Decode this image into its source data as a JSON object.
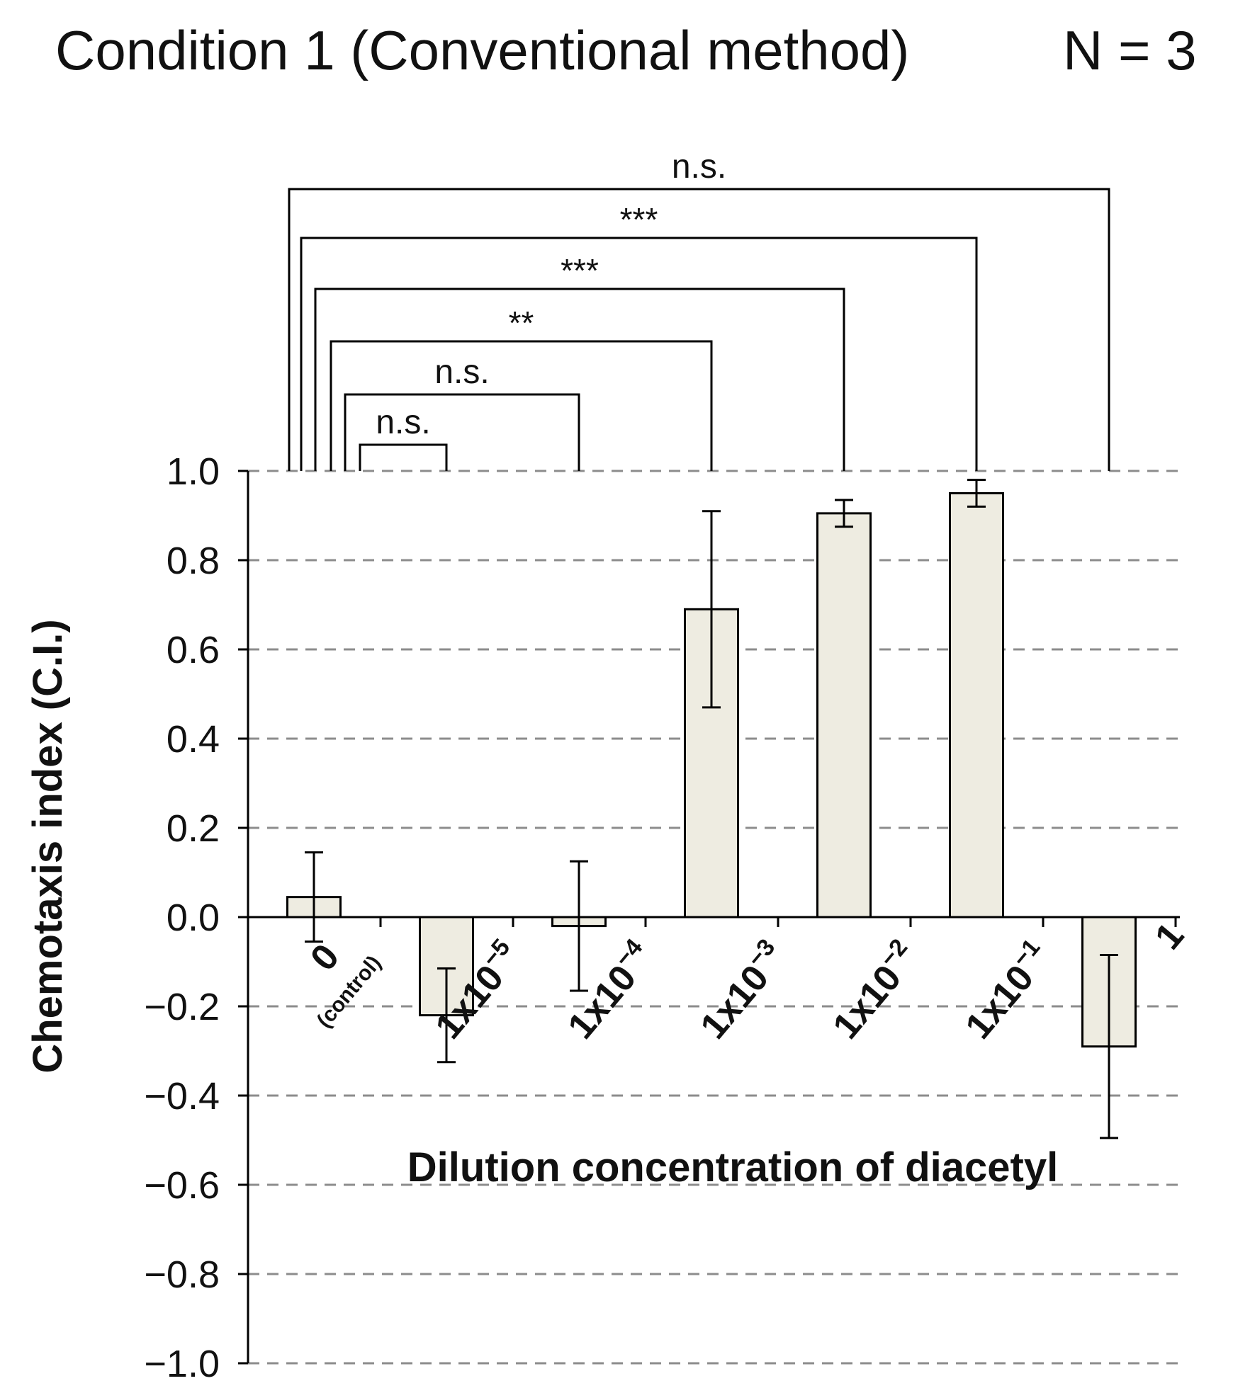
{
  "header": {
    "title": "Condition 1 (Conventional method)",
    "n_label": "N = 3"
  },
  "colors": {
    "bar_fill": "#eeece1",
    "bar_stroke": "#000000",
    "grid": "#8c8c8c",
    "axis": "#000000"
  },
  "chart_data": {
    "type": "bar",
    "title": "Condition 1 (Conventional method)",
    "subtitle": "N = 3",
    "xlabel": "Dilution concentration of diacetyl",
    "ylabel": "Chemotaxis index (C.I.)",
    "ylim": [
      -1.0,
      1.0
    ],
    "yticks": [
      "1.0",
      "0.8",
      "0.6",
      "0.4",
      "0.2",
      "0.0",
      "−0.2",
      "−0.4",
      "−0.6",
      "−0.8",
      "−1.0"
    ],
    "ytick_values": [
      1.0,
      0.8,
      0.6,
      0.4,
      0.2,
      0.0,
      -0.2,
      -0.4,
      -0.6,
      -0.8,
      -1.0
    ],
    "grid": "horizontal dashed",
    "categories": [
      {
        "main": "0",
        "sub": "(control)",
        "sup": ""
      },
      {
        "main": "1x10",
        "sub": "",
        "sup": "−5"
      },
      {
        "main": "1x10",
        "sub": "",
        "sup": "−4"
      },
      {
        "main": "1x10",
        "sub": "",
        "sup": "−3"
      },
      {
        "main": "1x10",
        "sub": "",
        "sup": "−2"
      },
      {
        "main": "1x10",
        "sub": "",
        "sup": "−1"
      },
      {
        "main": "1",
        "sub": "",
        "sup": ""
      }
    ],
    "values": [
      0.045,
      -0.22,
      -0.02,
      0.69,
      0.905,
      0.95,
      -0.29
    ],
    "error": [
      0.1,
      0.105,
      0.145,
      0.22,
      0.03,
      0.03,
      0.205
    ],
    "comparisons": [
      {
        "from": 0,
        "to": 1,
        "label": "n.s."
      },
      {
        "from": 0,
        "to": 2,
        "label": "n.s."
      },
      {
        "from": 0,
        "to": 3,
        "label": "**"
      },
      {
        "from": 0,
        "to": 4,
        "label": "***"
      },
      {
        "from": 0,
        "to": 5,
        "label": "***"
      },
      {
        "from": 0,
        "to": 6,
        "label": "n.s."
      }
    ]
  }
}
